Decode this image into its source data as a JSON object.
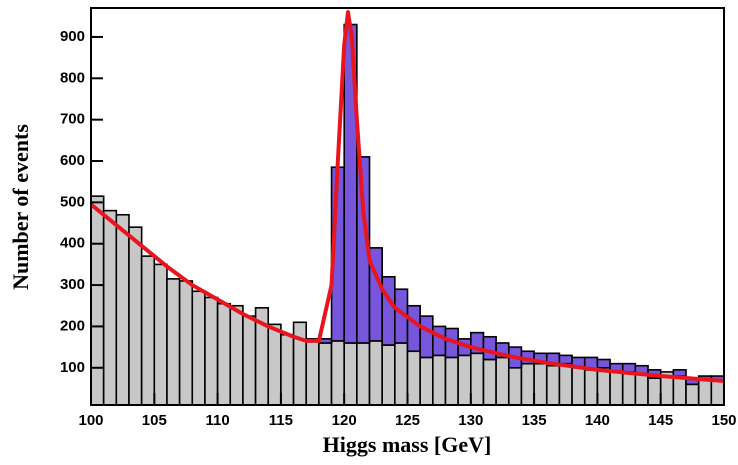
{
  "chart_data": {
    "type": "histogram",
    "x_label": "Higgs mass [GeV]",
    "y_label": "Number  of  events",
    "bins": [
      100,
      101,
      102,
      103,
      104,
      105,
      106,
      107,
      108,
      109,
      110,
      111,
      112,
      113,
      114,
      115,
      116,
      117,
      118,
      119,
      120,
      121,
      122,
      123,
      124,
      125,
      126,
      127,
      128,
      129,
      130,
      131,
      132,
      133,
      134,
      135,
      136,
      137,
      138,
      139,
      140,
      141,
      142,
      143,
      144,
      145,
      146,
      147,
      148,
      149,
      150
    ],
    "series": [
      {
        "color": "#c8c8c8",
        "values": [
          505,
          470,
          460,
          430,
          360,
          340,
          305,
          300,
          275,
          260,
          245,
          240,
          215,
          235,
          195,
          170,
          200,
          160,
          150,
          155,
          150,
          150,
          155,
          145,
          150,
          130,
          115,
          120,
          115,
          120,
          125,
          110,
          115,
          90,
          100,
          100,
          95,
          100,
          90,
          85,
          90,
          80,
          80,
          75,
          65,
          80,
          70,
          50,
          60,
          60
        ]
      },
      {
        "color": "#7755dd",
        "values": [
          0,
          0,
          0,
          0,
          0,
          0,
          0,
          0,
          0,
          0,
          0,
          0,
          0,
          0,
          0,
          0,
          0,
          0,
          10,
          420,
          770,
          450,
          225,
          165,
          130,
          110,
          100,
          70,
          70,
          40,
          50,
          55,
          35,
          50,
          30,
          25,
          30,
          20,
          25,
          30,
          20,
          20,
          20,
          20,
          20,
          0,
          15,
          15,
          10,
          10
        ]
      }
    ],
    "fit": {
      "color": "#e8141e",
      "x": [
        100,
        102,
        104,
        106,
        108,
        110,
        112,
        114,
        116,
        117,
        118,
        119,
        119.5,
        120,
        120.3,
        120.6,
        121,
        121.5,
        122,
        123,
        124,
        126,
        128,
        130,
        133,
        136,
        140,
        145,
        150
      ],
      "values": [
        495,
        445,
        395,
        345,
        300,
        265,
        230,
        200,
        175,
        165,
        165,
        300,
        600,
        880,
        960,
        900,
        700,
        480,
        360,
        290,
        245,
        200,
        170,
        150,
        128,
        112,
        95,
        80,
        68
      ]
    },
    "xlim": [
      100,
      150
    ],
    "xticks": [
      100,
      105,
      110,
      115,
      120,
      125,
      130,
      135,
      140,
      145,
      150
    ],
    "ylim": [
      10,
      970
    ],
    "yticks": [
      100,
      200,
      300,
      400,
      500,
      600,
      700,
      800,
      900
    ]
  }
}
